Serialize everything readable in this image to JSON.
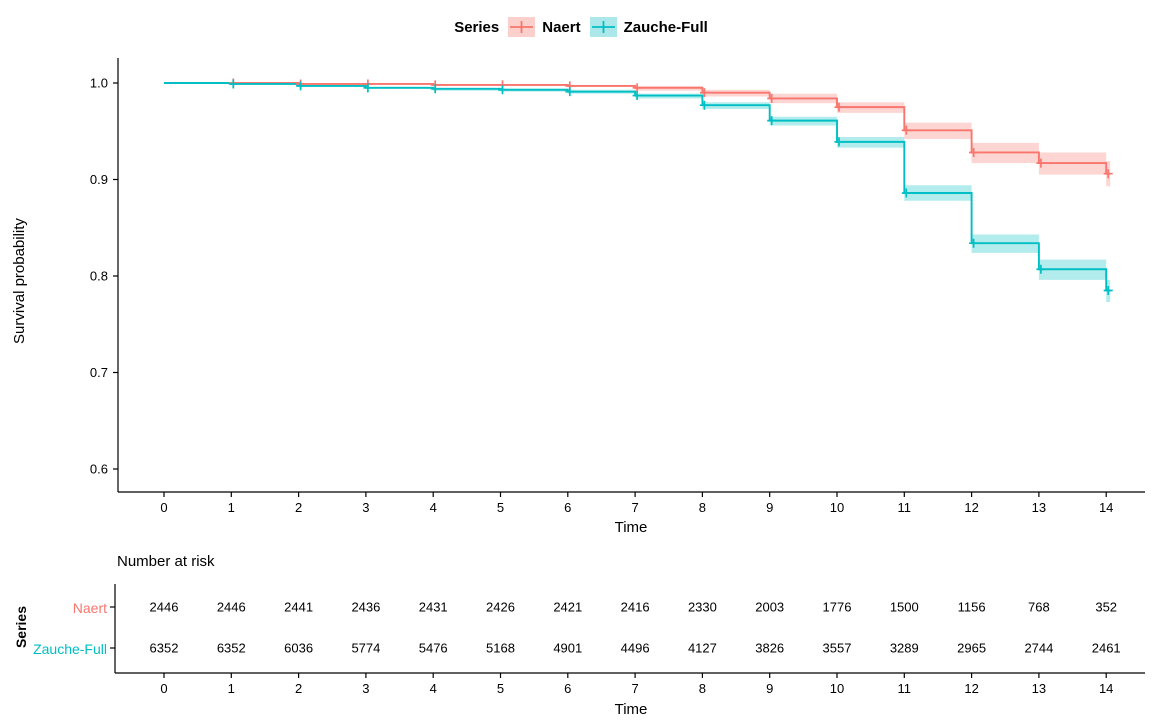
{
  "legend": {
    "title": "Series",
    "items": [
      {
        "label": "Naert",
        "line_color": "#F8766D",
        "key_fill": "#FBD0CC"
      },
      {
        "label": "Zauche-Full",
        "line_color": "#00BFC4",
        "key_fill": "#ACE8EA"
      }
    ]
  },
  "chart_data": {
    "type": "line",
    "subtype": "kaplan-meier-step-with-confidence-bands",
    "title": "",
    "xlabel": "Time",
    "ylabel": "Survival probability",
    "xticks": [
      0,
      1,
      2,
      3,
      4,
      5,
      6,
      7,
      8,
      9,
      10,
      11,
      12,
      13,
      14
    ],
    "yticks": [
      1.0,
      0.9,
      0.8,
      0.7,
      0.6
    ],
    "xlim": [
      0,
      14
    ],
    "ylim": [
      0.6,
      1.0
    ],
    "grid": "off",
    "legend_position": "top",
    "series": [
      {
        "name": "Naert",
        "color": "#F8766D",
        "x": [
          0,
          1,
          2,
          3,
          4,
          5,
          6,
          7,
          8,
          9,
          10,
          11,
          12,
          13,
          14
        ],
        "surv": [
          1.0,
          1.0,
          0.999,
          0.999,
          0.998,
          0.998,
          0.997,
          0.995,
          0.99,
          0.984,
          0.975,
          0.951,
          0.928,
          0.917,
          0.906
        ],
        "lower": [
          1.0,
          0.999,
          0.998,
          0.998,
          0.997,
          0.997,
          0.996,
          0.992,
          0.986,
          0.979,
          0.969,
          0.942,
          0.917,
          0.905,
          0.893
        ],
        "upper": [
          1.0,
          1.0,
          1.0,
          1.0,
          0.999,
          0.999,
          0.998,
          0.997,
          0.993,
          0.989,
          0.98,
          0.959,
          0.938,
          0.928,
          0.919
        ],
        "censor_times": [
          1,
          2,
          3,
          4,
          5,
          6,
          7,
          8,
          9,
          10,
          11,
          12,
          13,
          14
        ]
      },
      {
        "name": "Zauche-Full",
        "color": "#00BFC4",
        "x": [
          0,
          1,
          2,
          3,
          4,
          5,
          6,
          7,
          8,
          9,
          10,
          11,
          12,
          13,
          14
        ],
        "surv": [
          1.0,
          0.999,
          0.997,
          0.995,
          0.994,
          0.993,
          0.991,
          0.987,
          0.977,
          0.961,
          0.939,
          0.886,
          0.834,
          0.807,
          0.785
        ],
        "lower": [
          1.0,
          0.998,
          0.996,
          0.994,
          0.992,
          0.991,
          0.989,
          0.984,
          0.973,
          0.956,
          0.933,
          0.878,
          0.824,
          0.796,
          0.773
        ],
        "upper": [
          1.0,
          1.0,
          0.998,
          0.996,
          0.995,
          0.994,
          0.993,
          0.989,
          0.98,
          0.965,
          0.944,
          0.894,
          0.843,
          0.817,
          0.796
        ],
        "censor_times": [
          1,
          2,
          3,
          4,
          5,
          6,
          7,
          8,
          9,
          10,
          11,
          12,
          13,
          14
        ]
      }
    ],
    "band_opacity": 0.3
  },
  "risk_table": {
    "title": "Number at risk",
    "ylabel": "Series",
    "xlabel": "Time",
    "xticks": [
      0,
      1,
      2,
      3,
      4,
      5,
      6,
      7,
      8,
      9,
      10,
      11,
      12,
      13,
      14
    ],
    "rows": [
      {
        "label": "Naert",
        "color": "#F8766D",
        "counts": [
          2446,
          2446,
          2441,
          2436,
          2431,
          2426,
          2421,
          2416,
          2330,
          2003,
          1776,
          1500,
          1156,
          768,
          352
        ]
      },
      {
        "label": "Zauche-Full",
        "color": "#00BFC4",
        "counts": [
          6352,
          6352,
          6036,
          5774,
          5476,
          5168,
          4901,
          4496,
          4127,
          3826,
          3557,
          3289,
          2965,
          2744,
          2461
        ]
      }
    ]
  }
}
